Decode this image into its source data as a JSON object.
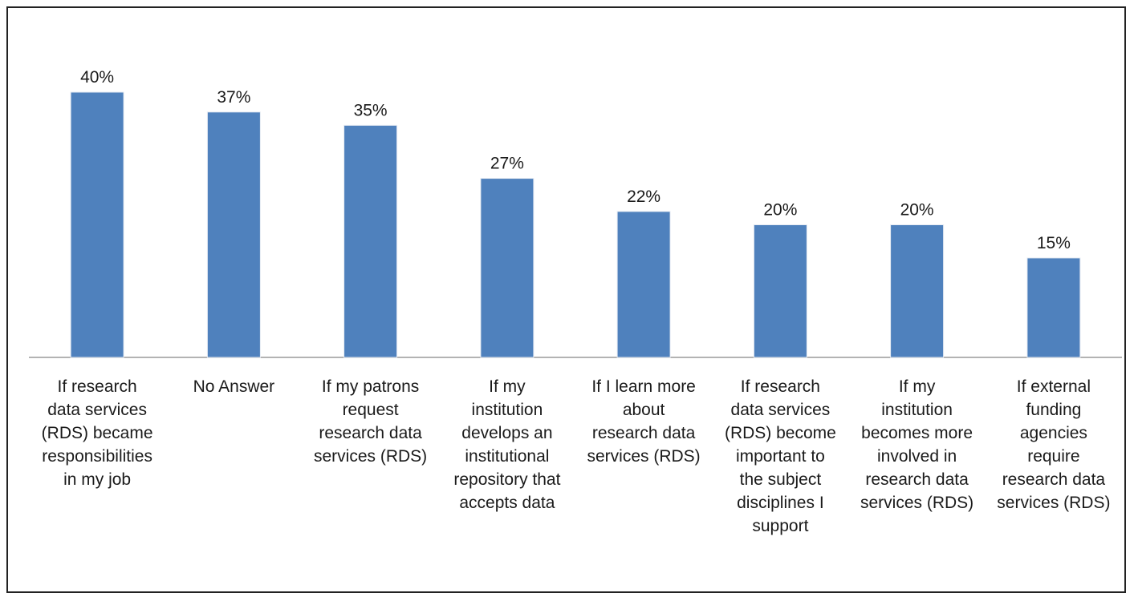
{
  "chart_data": {
    "type": "bar",
    "title": "",
    "xlabel": "",
    "ylabel": "",
    "ylim": [
      0,
      40
    ],
    "grid": false,
    "legend": "none",
    "bar_color": "#4f81bd",
    "categories": [
      "If research data services (RDS) became responsibilities in my job",
      "No Answer",
      "If my patrons request research data services (RDS)",
      "If my institution develops an institutional repository that accepts data",
      "If I learn more about research data services (RDS)",
      "If research data services (RDS) become important to the subject disciplines I support",
      "If my institution becomes more involved in research data services (RDS)",
      "If external funding agencies require research data services (RDS)"
    ],
    "category_lines": [
      [
        "If research",
        "data services",
        "(RDS) became",
        "responsibilities",
        "in my job"
      ],
      [
        "No Answer"
      ],
      [
        "If my patrons",
        "request",
        "research data",
        "services (RDS)"
      ],
      [
        "If my",
        "institution",
        "develops an",
        "institutional",
        "repository that",
        "accepts data"
      ],
      [
        "If I learn more",
        "about",
        "research data",
        "services (RDS)"
      ],
      [
        "If research",
        "data services",
        "(RDS) become",
        "important to",
        "the subject",
        "disciplines I",
        "support"
      ],
      [
        "If my",
        "institution",
        "becomes more",
        "involved in",
        "research data",
        "services (RDS)"
      ],
      [
        "If external",
        "funding",
        "agencies",
        "require",
        "research data",
        "services (RDS)"
      ]
    ],
    "values": [
      40,
      37,
      35,
      27,
      22,
      20,
      20,
      15
    ],
    "value_labels": [
      "40%",
      "37%",
      "35%",
      "27%",
      "22%",
      "20%",
      "20%",
      "15%"
    ]
  }
}
